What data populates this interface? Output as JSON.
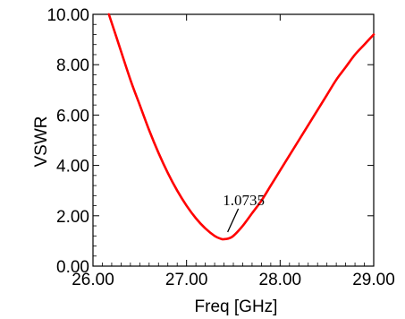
{
  "chart_data": {
    "type": "line",
    "title": "",
    "xlabel": "Freq [GHz]",
    "ylabel": "VSWR",
    "xlim": [
      26.0,
      29.0
    ],
    "ylim": [
      0.0,
      10.0
    ],
    "xticks": [
      "26.00",
      "27.00",
      "28.00",
      "29.00"
    ],
    "yticks": [
      "0.00",
      "2.00",
      "4.00",
      "6.00",
      "8.00",
      "10.00"
    ],
    "grid": false,
    "legend": "none",
    "series": [
      {
        "name": "",
        "color": "#ff0000",
        "x": [
          26.17,
          26.25,
          26.4,
          26.5,
          26.6,
          26.7,
          26.8,
          26.9,
          27.0,
          27.1,
          27.2,
          27.3,
          27.37,
          27.4,
          27.45,
          27.5,
          27.6,
          27.7,
          27.8,
          27.9,
          28.0,
          28.1,
          28.2,
          28.3,
          28.4,
          28.5,
          28.6,
          28.7,
          28.8,
          28.9,
          29.0
        ],
        "y": [
          10.0,
          9.1,
          7.4,
          6.4,
          5.4,
          4.5,
          3.7,
          3.0,
          2.4,
          1.9,
          1.5,
          1.2,
          1.08,
          1.07,
          1.1,
          1.2,
          1.6,
          2.1,
          2.6,
          3.2,
          3.8,
          4.4,
          5.0,
          5.6,
          6.2,
          6.8,
          7.4,
          7.9,
          8.4,
          8.8,
          9.2
        ]
      }
    ],
    "annotations": [
      {
        "text": "1.0735",
        "x": 27.42,
        "y": 1.07
      }
    ]
  }
}
